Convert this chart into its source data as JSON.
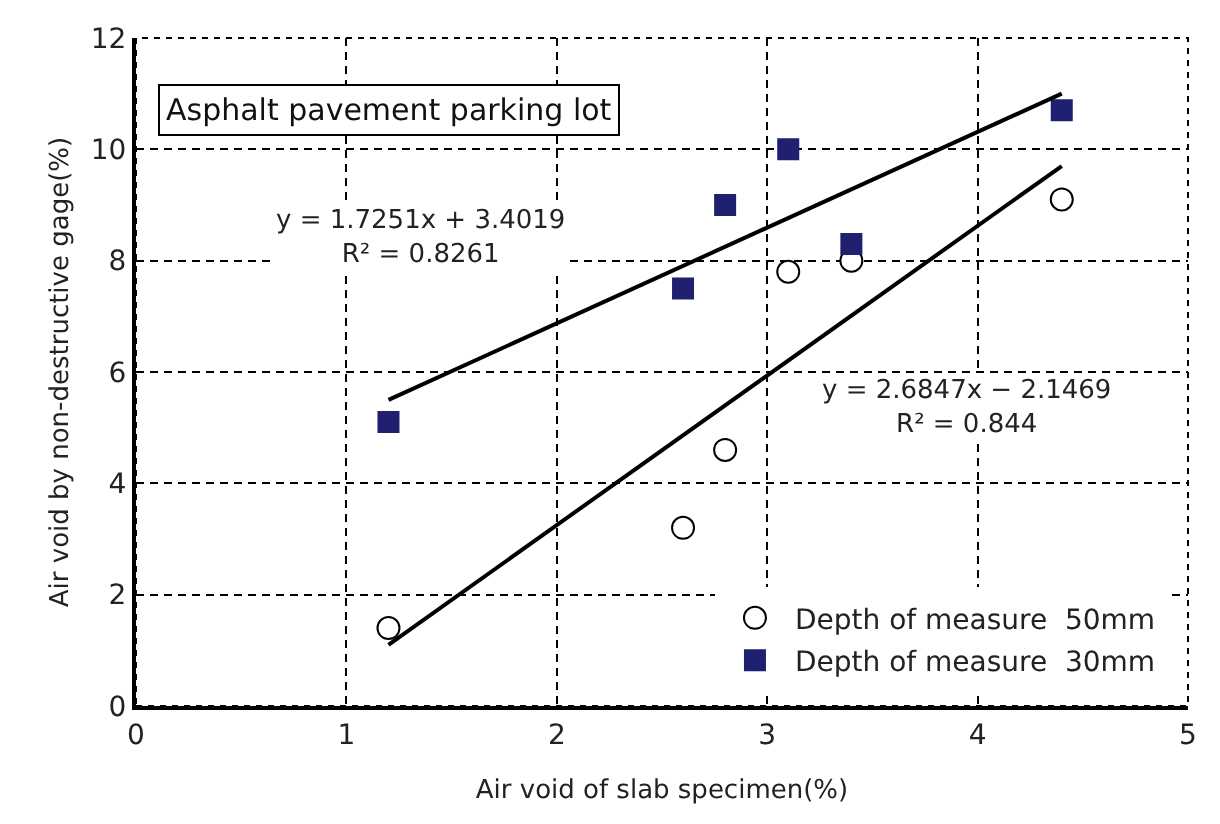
{
  "chart_data": {
    "type": "scatter",
    "title": "Asphalt pavement parking lot",
    "xlabel": "Air void of slab specimen(%)",
    "ylabel": "Air void by non-destructive gage(%)",
    "series": [
      {
        "name": "Depth of measure  50mm",
        "marker": "circle",
        "color": "#ffffff",
        "x": [
          1.2,
          2.6,
          2.8,
          3.1,
          3.4,
          4.4
        ],
        "values": [
          1.4,
          3.2,
          4.6,
          7.8,
          8.0,
          9.1
        ]
      },
      {
        "name": "Depth of measure  30mm",
        "marker": "square",
        "color": "#1f2070",
        "x": [
          1.2,
          2.6,
          2.8,
          3.1,
          3.4,
          4.4
        ],
        "values": [
          5.1,
          7.5,
          9.0,
          10.0,
          8.3,
          10.7
        ]
      },
      {
        "type": "line",
        "color": "#000000",
        "x": [
          1.2,
          4.4
        ],
        "values": [
          5.5,
          11.0
        ]
      },
      {
        "type": "line",
        "color": "#000000",
        "x": [
          1.2,
          4.4
        ],
        "values": [
          1.1,
          9.7
        ]
      }
    ],
    "annotations": [
      "y = 1.7251x + 3.4019\nR² = 0.8261",
      "y = 2.6847x − 2.1469\nR² = 0.844"
    ],
    "xlim": [
      0,
      5
    ],
    "xticks": [
      0,
      1,
      2,
      3,
      4,
      5
    ],
    "ylim": [
      0,
      12
    ],
    "yticks": [
      0,
      2,
      4,
      6,
      8,
      10,
      12
    ],
    "grid": true,
    "legend": "bottom right"
  }
}
